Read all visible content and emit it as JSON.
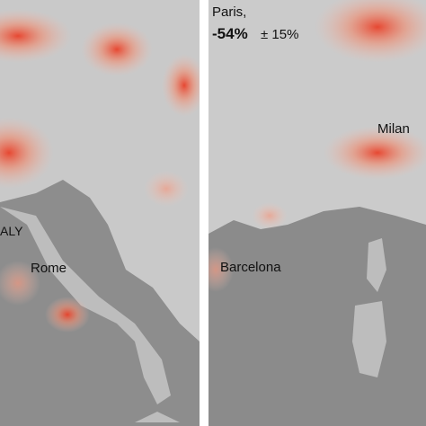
{
  "panels": [
    {
      "labels": {
        "country": "ALY",
        "city": "Rome"
      }
    },
    {
      "labels": {
        "city": "Paris,",
        "change": "-54%",
        "uncertainty": "± 15%",
        "city2": "Milan",
        "city3": "Barcelona"
      }
    }
  ]
}
